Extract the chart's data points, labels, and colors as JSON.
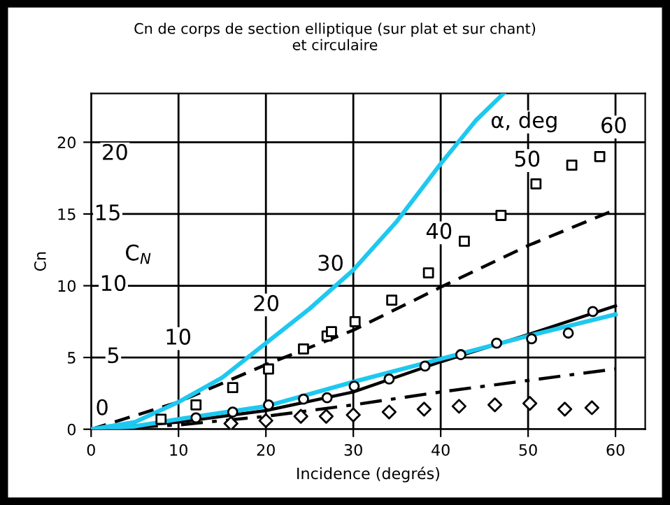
{
  "chart_data": {
    "type": "line",
    "title": "Cn de corps de section elliptique (sur plat et sur chant)\net circulaire",
    "xlabel": "Incidence (degrés)",
    "ylabel": "Cn",
    "xlim": [
      0,
      63.4
    ],
    "ylim": [
      0,
      23.4
    ],
    "xticks": [
      0,
      10,
      20,
      30,
      40,
      50,
      60
    ],
    "yticks": [
      0,
      5,
      10,
      15,
      20
    ],
    "grid": true,
    "series": [
      {
        "color": "#1ec8f0",
        "line_style": "solid",
        "x": [
          0,
          5,
          10,
          15,
          20,
          25,
          30,
          35,
          40,
          44,
          47.2
        ],
        "values": [
          0,
          0.5,
          1.9,
          3.6,
          6.0,
          8.4,
          11.1,
          14.5,
          18.5,
          21.5,
          23.4
        ]
      },
      {
        "color": "#1ec8f0",
        "line_style": "solid",
        "x": [
          0,
          5,
          10,
          20,
          30,
          40,
          50,
          60
        ],
        "values": [
          0,
          0.2,
          0.7,
          1.6,
          3.3,
          4.9,
          6.5,
          8.0
        ]
      },
      {
        "color": "#000000",
        "line_style": "dashed",
        "x": [
          0,
          10,
          20,
          30,
          40,
          50,
          60
        ],
        "values": [
          0,
          1.9,
          4.5,
          6.9,
          9.9,
          12.8,
          15.3
        ]
      },
      {
        "color": "#000000",
        "line_style": "solid",
        "x": [
          0,
          10,
          20,
          30,
          40,
          50,
          60
        ],
        "values": [
          0,
          0.5,
          1.3,
          2.6,
          4.7,
          6.6,
          8.6
        ]
      },
      {
        "color": "#000000",
        "line_style": "dashdot",
        "x": [
          0,
          10,
          20,
          30,
          40,
          50,
          60
        ],
        "values": [
          0,
          0.3,
          0.9,
          1.7,
          2.6,
          3.4,
          4.2
        ]
      },
      {
        "type": "scatter",
        "color": "#000000",
        "marker": "square",
        "x": [
          8,
          12,
          16.2,
          20.3,
          24.3,
          27,
          27.5,
          30.2,
          34.4,
          38.6,
          42.7,
          46.9,
          50.9,
          55,
          58.2
        ],
        "values": [
          0.7,
          1.7,
          2.9,
          4.2,
          5.6,
          6.5,
          6.8,
          7.5,
          9.0,
          10.9,
          13.1,
          14.9,
          17.1,
          18.4,
          19.0
        ]
      },
      {
        "type": "scatter",
        "color": "#000000",
        "marker": "circle",
        "x": [
          12,
          16.2,
          20.3,
          24.3,
          27,
          30.1,
          34.1,
          38.2,
          42.3,
          46.4,
          50.4,
          54.6,
          57.4
        ],
        "values": [
          0.8,
          1.2,
          1.7,
          2.1,
          2.2,
          3.0,
          3.5,
          4.4,
          5.2,
          6.0,
          6.3,
          6.7,
          8.2
        ]
      },
      {
        "type": "scatter",
        "color": "#000000",
        "marker": "diamond",
        "x": [
          16,
          20,
          24,
          26.9,
          30,
          34.1,
          38.1,
          42.1,
          46.2,
          50.2,
          54.2,
          57.3
        ],
        "values": [
          0.4,
          0.6,
          0.9,
          0.9,
          1.0,
          1.2,
          1.4,
          1.6,
          1.7,
          1.8,
          1.4,
          1.5
        ]
      }
    ],
    "annotations": [
      "20",
      "15",
      "C$_{N}$",
      "10",
      "5",
      "0",
      "10",
      "20",
      "30",
      "40",
      "50",
      "α, deg",
      "60"
    ]
  }
}
